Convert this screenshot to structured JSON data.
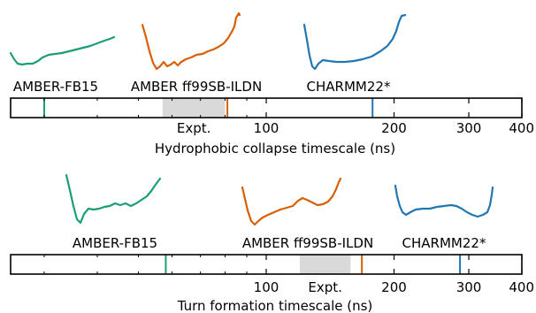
{
  "chart_data": [
    {
      "type": "timeline",
      "xlabel": "Hydrophobic collapse timescale (ns)",
      "x_scale": "log",
      "xlim": [
        25,
        400
      ],
      "major_ticks": [
        100,
        200,
        300,
        400
      ],
      "minor_ticks": [
        30,
        40,
        50,
        60,
        70,
        80,
        90
      ],
      "expt": {
        "label": "Expt.",
        "range": [
          57,
          80
        ]
      },
      "markers": [
        {
          "name": "AMBER-FB15",
          "value": 30,
          "color": "#1a9e77"
        },
        {
          "name": "AMBER ff99SB-ILDN",
          "value": 81,
          "color": "#d95f02"
        },
        {
          "name": "CHARMM22*",
          "value": 178,
          "color": "#1f77b4"
        }
      ]
    },
    {
      "type": "timeline",
      "xlabel": "Turn formation timescale (ns)",
      "x_scale": "log",
      "xlim": [
        25,
        400
      ],
      "major_ticks": [
        100,
        200,
        300,
        400
      ],
      "minor_ticks": [
        30,
        40,
        50,
        60,
        70,
        80,
        90
      ],
      "expt": {
        "label": "Expt.",
        "range": [
          120,
          158
        ]
      },
      "markers": [
        {
          "name": "AMBER-FB15",
          "value": 58,
          "color": "#1a9e77"
        },
        {
          "name": "AMBER ff99SB-ILDN",
          "value": 168,
          "color": "#d95f02"
        },
        {
          "name": "CHARMM22*",
          "value": 286,
          "color": "#1f77b4"
        }
      ]
    }
  ],
  "colors": {
    "amber_fb15": "#1a9e77",
    "ff99sb": "#d95f02",
    "charmm": "#1f77b4",
    "expt_band": "#d9d9d9"
  }
}
